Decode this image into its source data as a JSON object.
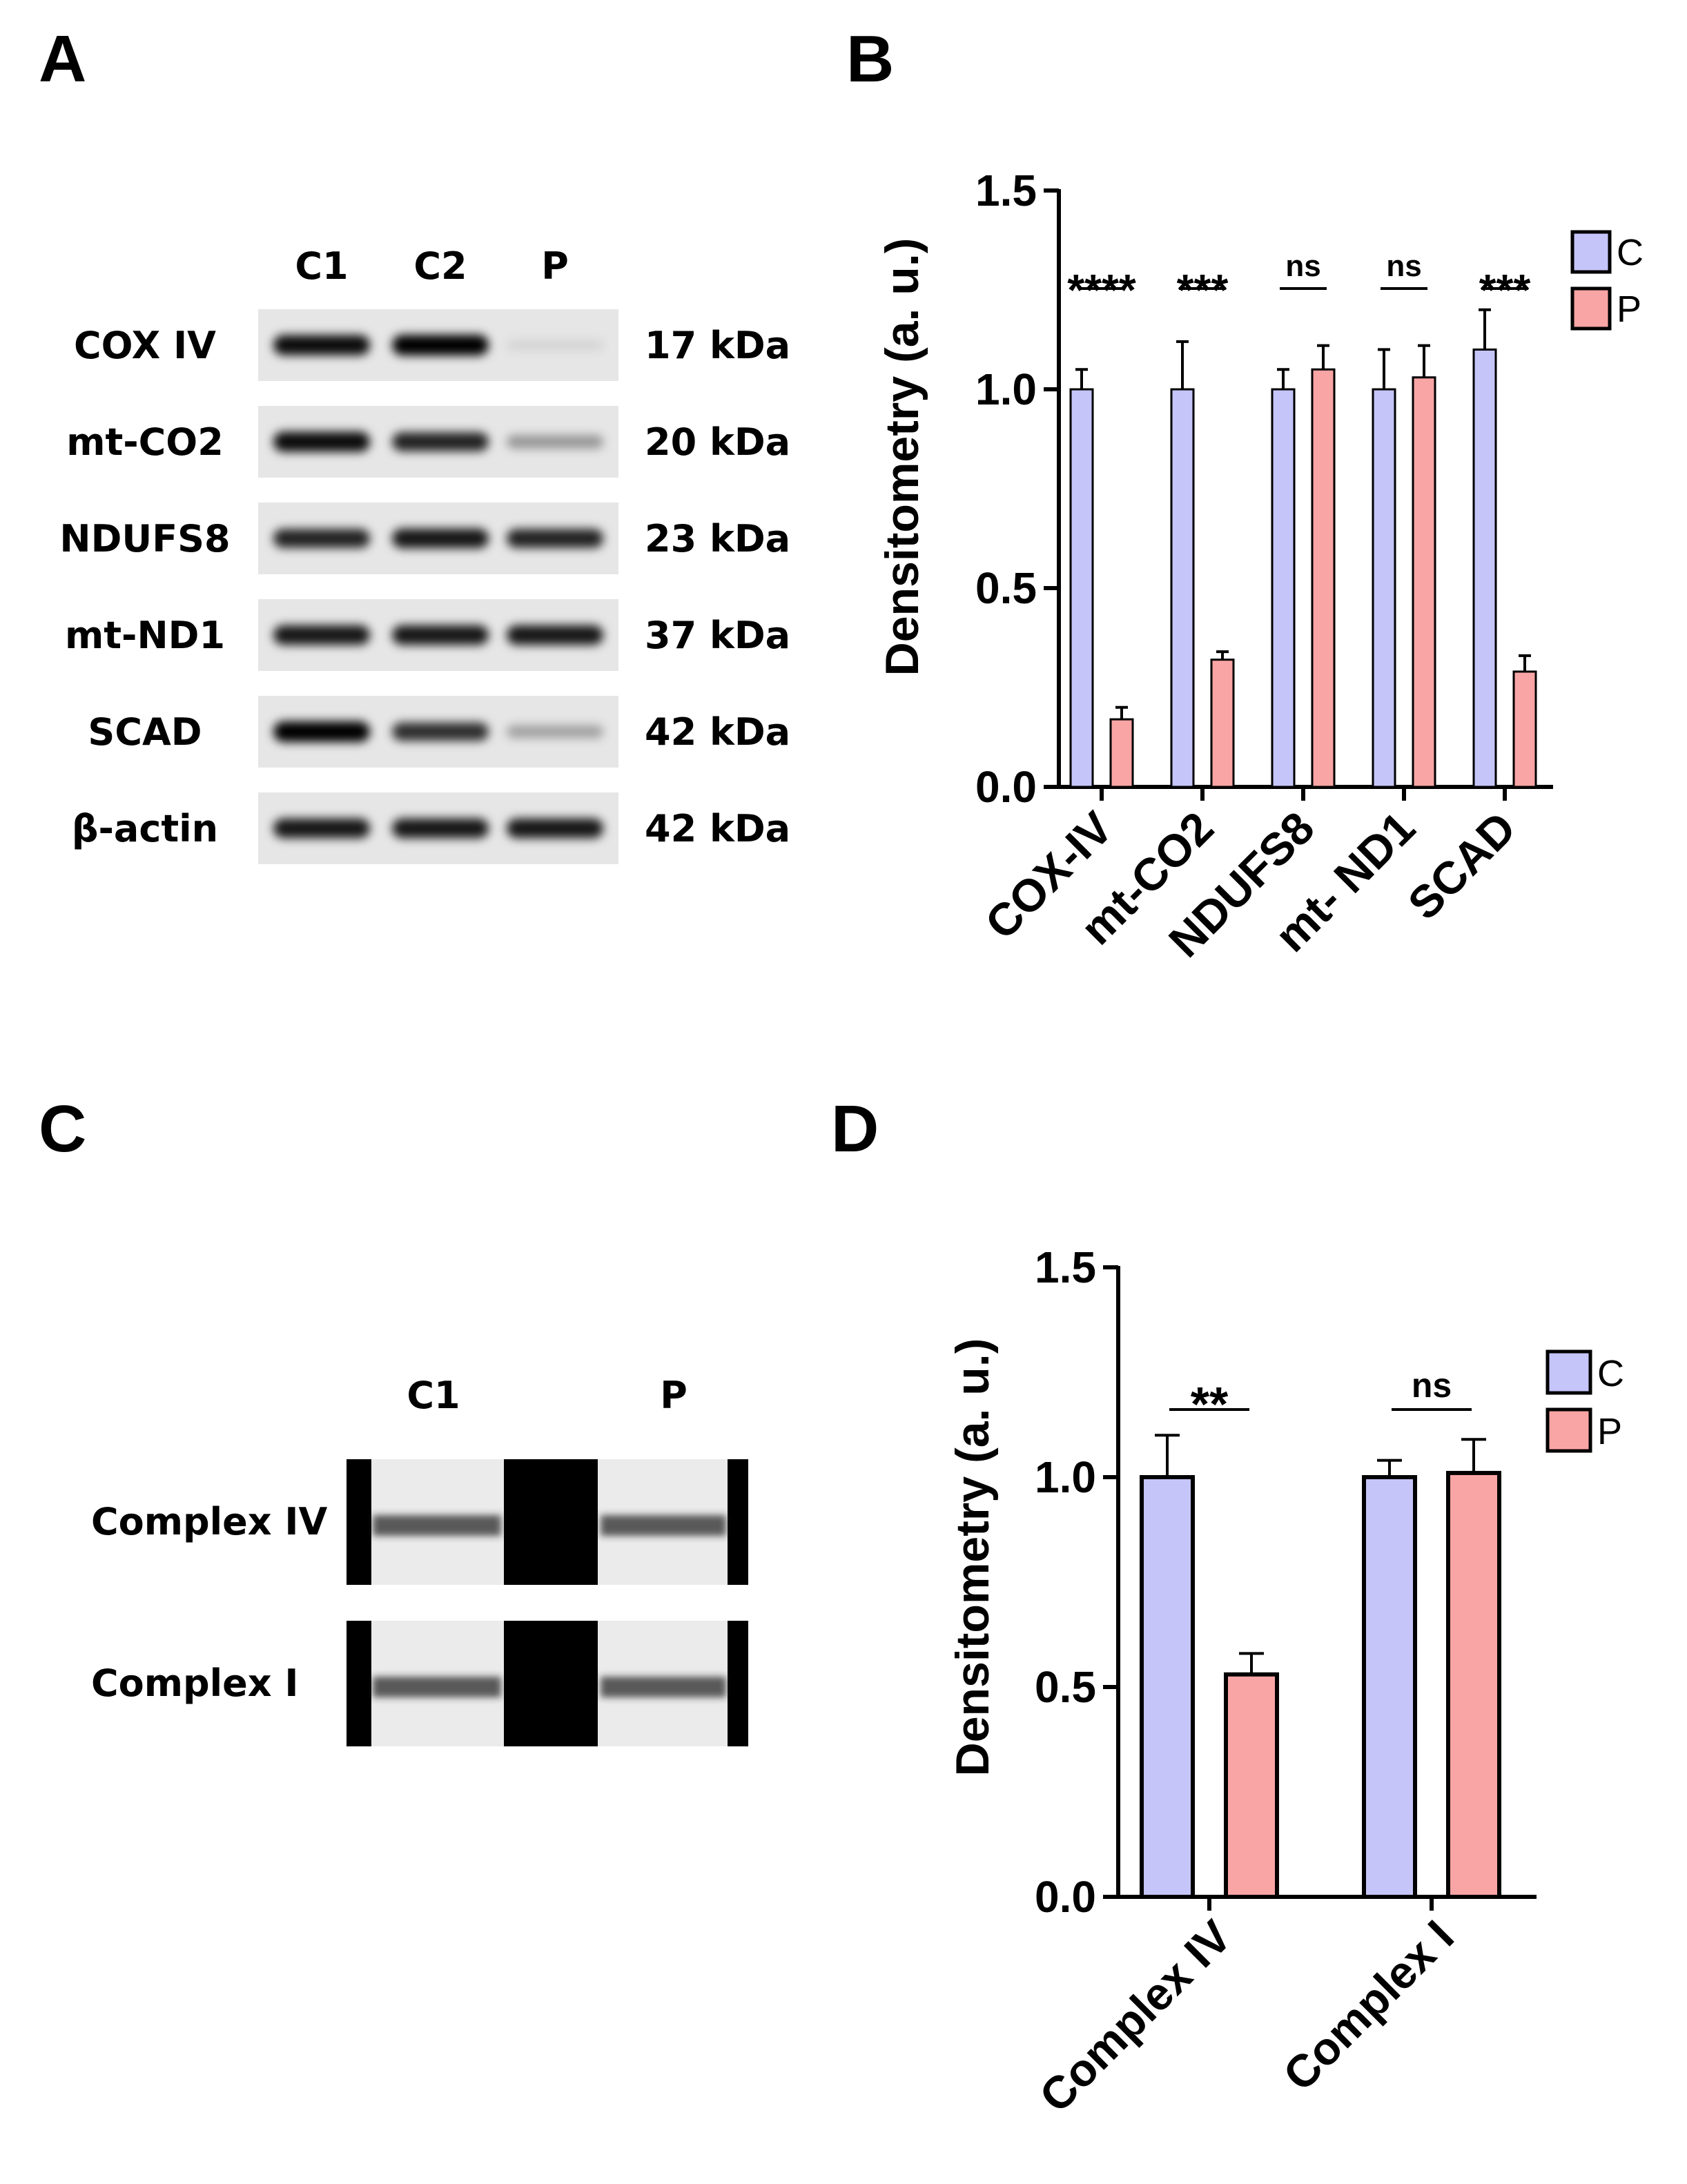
{
  "panels": {
    "a": "A",
    "b": "B",
    "c": "C",
    "d": "D"
  },
  "blot_a": {
    "lanes": [
      "C1",
      "C2",
      "P"
    ],
    "rows": [
      {
        "protein": "COX IV",
        "size": "17 kDa",
        "intensity": [
          0.95,
          1.0,
          0.08
        ]
      },
      {
        "protein": "mt-CO2",
        "size": "20 kDa",
        "intensity": [
          0.95,
          0.85,
          0.35
        ]
      },
      {
        "protein": "NDUFS8",
        "size": "23 kDa",
        "intensity": [
          0.85,
          0.9,
          0.85
        ]
      },
      {
        "protein": "mt-ND1",
        "size": "37 kDa",
        "intensity": [
          0.9,
          0.9,
          0.9
        ]
      },
      {
        "protein": "SCAD",
        "size": "42 kDa",
        "intensity": [
          1.0,
          0.8,
          0.3
        ]
      },
      {
        "protein": "β-actin",
        "size": "42 kDa",
        "intensity": [
          0.9,
          0.9,
          0.9
        ]
      }
    ]
  },
  "blot_c": {
    "lanes": [
      "C1",
      "P"
    ],
    "rows": [
      {
        "label": "Complex IV"
      },
      {
        "label": "Complex I"
      }
    ]
  },
  "colors": {
    "control": "#c5c5fa",
    "patient": "#faa5a5",
    "outline": "#000000"
  },
  "chart_data": [
    {
      "type": "bar",
      "panel": "B",
      "categories": [
        "COX-IV",
        "mt-CO2",
        "NDUFS8",
        "mt- ND1",
        "SCAD"
      ],
      "series": [
        {
          "name": "C",
          "values": [
            1.0,
            1.0,
            1.0,
            1.0,
            1.1
          ],
          "errors": [
            0.05,
            0.12,
            0.05,
            0.1,
            0.1
          ]
        },
        {
          "name": "P",
          "values": [
            0.17,
            0.32,
            1.05,
            1.03,
            0.29
          ],
          "errors": [
            0.03,
            0.02,
            0.06,
            0.08,
            0.04
          ]
        }
      ],
      "significance": [
        "****",
        "***",
        "ns",
        "ns",
        "***"
      ],
      "ylabel": "Densitometry (a. u.)",
      "ylim": [
        0,
        1.5
      ],
      "yticks": [
        "0.0",
        "0.5",
        "1.0",
        "1.5"
      ],
      "legend_position": "top-right"
    },
    {
      "type": "bar",
      "panel": "D",
      "categories": [
        "Complex IV",
        "Complex I"
      ],
      "series": [
        {
          "name": "C",
          "values": [
            1.0,
            1.0
          ],
          "errors": [
            0.1,
            0.04
          ]
        },
        {
          "name": "P",
          "values": [
            0.53,
            1.01
          ],
          "errors": [
            0.05,
            0.08
          ]
        }
      ],
      "significance": [
        "**",
        "ns"
      ],
      "ylabel": "Densitometry (a. u.)",
      "ylim": [
        0,
        1.5
      ],
      "yticks": [
        "0.0",
        "0.5",
        "1.0",
        "1.5"
      ],
      "legend_position": "top-right"
    }
  ]
}
